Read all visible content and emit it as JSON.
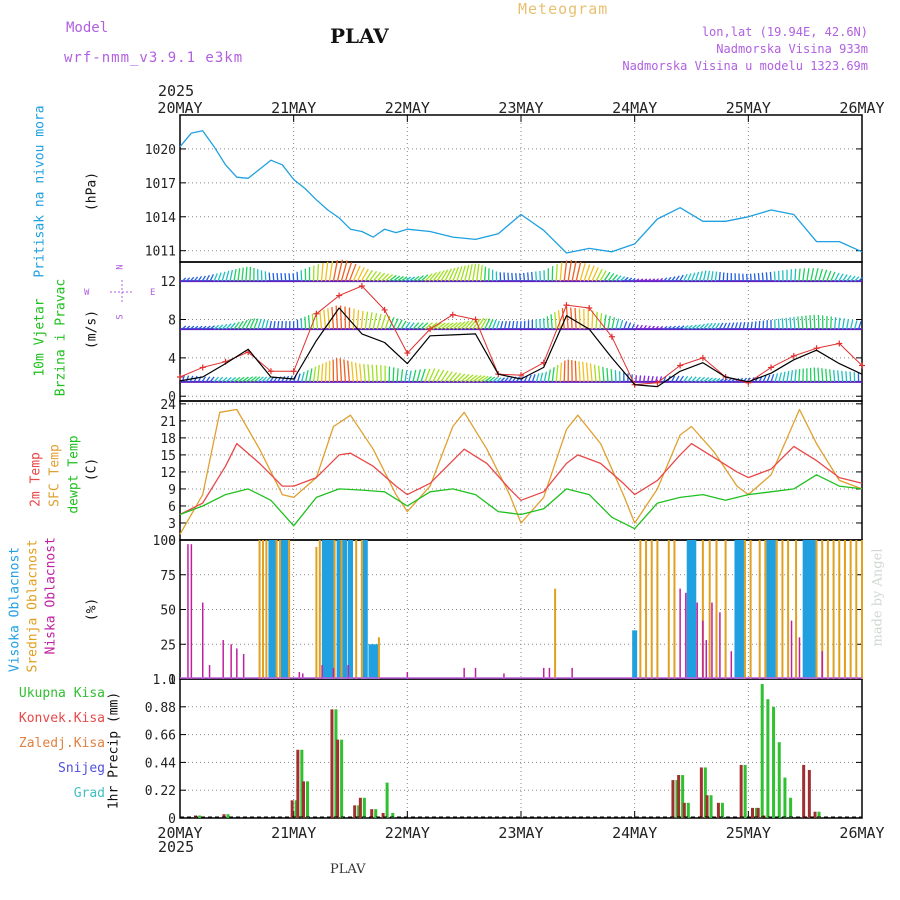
{
  "header": {
    "model_label": "Model",
    "model_name": "wrf-nmm_v3.9.1 e3km",
    "station": "PLAV",
    "meteogram": "Meteogram",
    "lonlat": "lon,lat (19.94E, 42.6N)",
    "altitude": "Nadmorska Visina 933m",
    "model_altitude": "Nadmorska Visina u modelu 1323.69m",
    "footer_station": "PLAV",
    "credit": "made by Angel"
  },
  "colors": {
    "pressure": "#1fa0e0",
    "temp2m": "#e84848",
    "sfc": "#e0a030",
    "dew": "#20c020",
    "high_cloud": "#20a0e0",
    "mid_cloud": "#e0a020",
    "low_cloud": "#c020a0",
    "precip_total": "#30c030",
    "precip_conv": "#a03030",
    "precip_frozen": "#e08040",
    "snow": "#5050e0",
    "hail": "#40c0c0",
    "gust": "#e03030"
  },
  "time_axis": {
    "year_top": "2025",
    "year_bottom": "2025",
    "ticks": [
      "20MAY",
      "21MAY",
      "22MAY",
      "23MAY",
      "24MAY",
      "25MAY",
      "26MAY"
    ]
  },
  "panel_labels": {
    "pressure": [
      "Pritisak na nivou mora",
      "(hPa)"
    ],
    "wind": [
      "10m Vjetar",
      "Brzina i Pravac",
      "(m/s)"
    ],
    "compass": {
      "n": "N",
      "s": "S",
      "w": "W",
      "e": "E"
    },
    "temp": [
      "2m Temp",
      "SFC Temp",
      "dewpt Temp",
      "(C)"
    ],
    "cloud": [
      "Visoka Oblacnost",
      "Srednja Oblacnost",
      "Niska Oblacnost",
      "(%)"
    ],
    "precip_legend": [
      "Ukupna Kisa",
      "Konvek.Kisa",
      "Zaledj.Kisa",
      "Snijeg",
      "Grad"
    ],
    "precip_unit": "1hr Precip (mm)"
  },
  "chart_data": [
    {
      "type": "line",
      "title": "Pritisak na nivou mora",
      "ylabel": "(hPa)",
      "ylim": [
        1010,
        1023
      ],
      "yticks": [
        "1011",
        "1014",
        "1017",
        "1020"
      ],
      "x_unit": "days from 20MAY 00",
      "series": [
        {
          "name": "pressure",
          "x": [
            0,
            0.1,
            0.2,
            0.3,
            0.4,
            0.5,
            0.6,
            0.7,
            0.8,
            0.9,
            1,
            1.1,
            1.2,
            1.3,
            1.4,
            1.5,
            1.6,
            1.7,
            1.8,
            1.9,
            2,
            2.2,
            2.4,
            2.6,
            2.8,
            3,
            3.2,
            3.4,
            3.6,
            3.8,
            4,
            4.2,
            4.4,
            4.6,
            4.8,
            5,
            5.2,
            5.4,
            5.6,
            5.8,
            6
          ],
          "values": [
            1020.2,
            1021.4,
            1021.6,
            1020.2,
            1018.6,
            1017.5,
            1017.4,
            1018.2,
            1019.0,
            1018.6,
            1017.3,
            1016.5,
            1015.5,
            1014.6,
            1013.9,
            1012.9,
            1012.7,
            1012.2,
            1012.9,
            1012.6,
            1012.9,
            1012.7,
            1012.2,
            1012.0,
            1012.5,
            1014.2,
            1012.8,
            1010.8,
            1011.2,
            1010.9,
            1011.6,
            1013.8,
            1014.8,
            1013.6,
            1013.6,
            1014.0,
            1014.6,
            1014.2,
            1011.8,
            1011.8,
            1010.9
          ]
        }
      ]
    },
    {
      "type": "line",
      "title": "10m Vjetar Brzina i Pravac",
      "ylabel": "(m/s)",
      "ylim": [
        -0.5,
        14
      ],
      "yticks": [
        "0",
        "4",
        "8",
        "12"
      ],
      "series": [
        {
          "name": "wind speed",
          "x": [
            0,
            0.2,
            0.4,
            0.6,
            0.8,
            1,
            1.2,
            1.4,
            1.6,
            1.8,
            2,
            2.2,
            2.4,
            2.6,
            2.8,
            3,
            3.2,
            3.4,
            3.6,
            3.8,
            4,
            4.2,
            4.4,
            4.6,
            4.8,
            5,
            5.2,
            5.4,
            5.6,
            5.8,
            6
          ],
          "values": [
            1.6,
            2.0,
            3.4,
            4.9,
            2.0,
            1.8,
            5.8,
            9.2,
            6.5,
            5.6,
            3.4,
            6.3,
            6.4,
            6.5,
            2.3,
            1.8,
            3.0,
            8.4,
            7.0,
            4.0,
            1.2,
            1.0,
            2.6,
            3.5,
            2.0,
            1.5,
            2.4,
            3.8,
            4.8,
            3.4,
            2.3
          ]
        },
        {
          "name": "gust",
          "x": [
            0,
            0.2,
            0.4,
            0.6,
            0.8,
            1,
            1.2,
            1.4,
            1.6,
            1.8,
            2,
            2.2,
            2.4,
            2.6,
            2.8,
            3,
            3.2,
            3.4,
            3.6,
            3.8,
            4,
            4.2,
            4.4,
            4.6,
            4.8,
            5,
            5.2,
            5.4,
            5.6,
            5.8,
            6
          ],
          "values": [
            2.0,
            3.0,
            3.6,
            4.6,
            2.6,
            2.6,
            8.6,
            10.5,
            11.5,
            9.0,
            4.5,
            7.0,
            8.5,
            8.0,
            2.3,
            2.2,
            3.5,
            9.5,
            9.2,
            6.2,
            1.2,
            1.4,
            3.2,
            4.0,
            2.0,
            1.4,
            3.0,
            4.2,
            5.0,
            5.5,
            3.2
          ]
        }
      ]
    },
    {
      "type": "line",
      "title": "2m Temp / SFC Temp / dewpt Temp",
      "ylabel": "(C)",
      "ylim": [
        0,
        24.5
      ],
      "yticks": [
        "0",
        "3",
        "6",
        "9",
        "12",
        "15",
        "18",
        "21",
        "24"
      ],
      "series": [
        {
          "name": "2m Temp",
          "x": [
            0,
            0.2,
            0.4,
            0.5,
            0.7,
            0.9,
            1,
            1.2,
            1.4,
            1.5,
            1.7,
            1.9,
            2,
            2.2,
            2.4,
            2.5,
            2.7,
            2.9,
            3,
            3.2,
            3.4,
            3.5,
            3.7,
            3.9,
            4,
            4.2,
            4.4,
            4.5,
            4.7,
            4.9,
            5,
            5.2,
            5.4,
            5.6,
            5.8,
            6
          ],
          "values": [
            4.5,
            6.5,
            13.0,
            17.0,
            13.5,
            9.5,
            9.5,
            11.0,
            15.0,
            15.3,
            13.0,
            9.5,
            8.0,
            10.0,
            14.0,
            16.0,
            13.5,
            9.0,
            7.0,
            8.5,
            13.5,
            15.0,
            13.5,
            10.0,
            8.0,
            10.5,
            15.0,
            17.0,
            14.5,
            12.0,
            11.0,
            12.5,
            16.5,
            14.0,
            11.0,
            10.0
          ]
        },
        {
          "name": "SFC Temp",
          "x": [
            0,
            0.2,
            0.35,
            0.5,
            0.7,
            0.9,
            1,
            1.2,
            1.35,
            1.5,
            1.7,
            1.9,
            2,
            2.2,
            2.4,
            2.5,
            2.7,
            2.9,
            3,
            3.2,
            3.4,
            3.5,
            3.7,
            3.9,
            4,
            4.2,
            4.4,
            4.5,
            4.7,
            4.9,
            5,
            5.2,
            5.45,
            5.6,
            5.8,
            6
          ],
          "values": [
            1.0,
            8.0,
            22.5,
            23.0,
            16.0,
            8.0,
            7.5,
            11.0,
            20.0,
            22.0,
            16.0,
            8.0,
            5.0,
            9.5,
            20.0,
            22.5,
            16.0,
            8.0,
            3.0,
            7.5,
            19.5,
            22.0,
            17.0,
            8.0,
            3.0,
            9.0,
            18.5,
            20.0,
            15.5,
            9.5,
            8.0,
            11.5,
            23.0,
            17.0,
            10.5,
            9.0
          ]
        },
        {
          "name": "dewpt Temp",
          "x": [
            0,
            0.2,
            0.4,
            0.6,
            0.8,
            1,
            1.2,
            1.4,
            1.6,
            1.8,
            2,
            2.2,
            2.4,
            2.6,
            2.8,
            3,
            3.2,
            3.4,
            3.6,
            3.8,
            4,
            4.2,
            4.4,
            4.6,
            4.8,
            5,
            5.2,
            5.4,
            5.6,
            5.8,
            6
          ],
          "values": [
            4.5,
            6.0,
            8.0,
            9.0,
            7.0,
            2.5,
            7.5,
            9.0,
            8.8,
            8.5,
            6.0,
            8.5,
            9.0,
            8.0,
            5.0,
            4.5,
            5.5,
            9.0,
            8.0,
            4.0,
            2.0,
            6.5,
            7.5,
            8.0,
            7.0,
            8.0,
            8.5,
            9.0,
            11.5,
            9.5,
            9.0
          ]
        }
      ]
    },
    {
      "type": "bar",
      "title": "Oblacnost",
      "ylabel": "(%)",
      "ylim": [
        0,
        100
      ],
      "yticks": [
        "0",
        "25",
        "50",
        "75",
        "100"
      ],
      "series": [
        {
          "name": "Visoka Oblacnost",
          "x": [
            0.8,
            0.83,
            0.9,
            0.93,
            1.27,
            1.3,
            1.33,
            1.4,
            1.45,
            1.5,
            1.63,
            1.68,
            1.72,
            4.0,
            4.48,
            4.52,
            4.9,
            4.92,
            4.95,
            5.18,
            5.2,
            5.22,
            5.5,
            5.52,
            5.55,
            5.58
          ],
          "values": [
            100,
            100,
            100,
            100,
            100,
            100,
            100,
            100,
            100,
            100,
            100,
            25,
            25,
            35,
            100,
            100,
            100,
            100,
            100,
            100,
            100,
            100,
            100,
            100,
            100,
            100
          ]
        },
        {
          "name": "Srednja Oblacnost",
          "x": [
            0.7,
            0.73,
            0.76,
            0.85,
            0.88,
            0.96,
            1.2,
            1.23,
            1.36,
            1.42,
            1.55,
            1.6,
            1.75,
            3.3,
            4.05,
            4.1,
            4.15,
            4.2,
            4.3,
            4.35,
            4.6,
            4.66,
            4.72,
            4.8,
            4.97,
            5.02,
            5.1,
            5.15,
            5.25,
            5.3,
            5.35,
            5.42,
            5.6,
            5.65,
            5.7,
            5.75,
            5.8,
            5.85,
            5.9,
            5.95,
            6.0
          ],
          "values": [
            100,
            100,
            100,
            100,
            100,
            100,
            95,
            100,
            100,
            100,
            100,
            100,
            30,
            65,
            100,
            100,
            100,
            100,
            100,
            100,
            100,
            100,
            100,
            100,
            100,
            100,
            100,
            100,
            100,
            100,
            100,
            100,
            100,
            100,
            100,
            100,
            100,
            100,
            100,
            100,
            100
          ]
        },
        {
          "name": "Niska Oblacnost",
          "x": [
            0.07,
            0.1,
            0.2,
            0.26,
            0.38,
            0.45,
            0.5,
            0.56,
            1.05,
            1.08,
            1.25,
            1.35,
            1.48,
            2.0,
            2.5,
            2.6,
            2.85,
            3.2,
            3.25,
            3.45,
            4.4,
            4.45,
            4.55,
            4.6,
            4.63,
            4.68,
            4.75,
            4.85,
            5.38,
            5.45,
            5.65
          ],
          "values": [
            97,
            97,
            55,
            10,
            28,
            25,
            22,
            18,
            5,
            4,
            10,
            8,
            10,
            5,
            8,
            8,
            4,
            8,
            8,
            8,
            65,
            62,
            55,
            42,
            28,
            55,
            48,
            20,
            42,
            30,
            20
          ]
        }
      ]
    },
    {
      "type": "bar",
      "title": "1hr Precip",
      "ylabel": "1hr Precip (mm)",
      "ylim": [
        0,
        1.1
      ],
      "yticks": [
        "0",
        "0.22",
        "0.44",
        "0.66",
        "0.88",
        "1.1"
      ],
      "series": [
        {
          "name": "Ukupna Kisa",
          "x": [
            0.15,
            0.4,
            1.0,
            1.05,
            1.1,
            1.35,
            1.4,
            1.55,
            1.6,
            1.7,
            1.8,
            1.85,
            4.35,
            4.4,
            4.45,
            4.6,
            4.65,
            4.75,
            4.95,
            5.05,
            5.1,
            5.15,
            5.2,
            5.25,
            5.3,
            5.35,
            5.6
          ],
          "values": [
            0.02,
            0.03,
            0.14,
            0.54,
            0.29,
            0.86,
            0.62,
            0.1,
            0.16,
            0.07,
            0.28,
            0.04,
            0.3,
            0.34,
            0.12,
            0.4,
            0.18,
            0.12,
            0.42,
            0.08,
            1.06,
            0.94,
            0.88,
            0.6,
            0.32,
            0.16,
            0.05
          ]
        },
        {
          "name": "Konvek.Kisa",
          "x": [
            0.15,
            0.4,
            1.0,
            1.05,
            1.1,
            1.35,
            1.4,
            1.55,
            1.6,
            1.7,
            1.8,
            4.35,
            4.4,
            4.45,
            4.6,
            4.65,
            4.75,
            4.95,
            5.05,
            5.1,
            5.15,
            5.5,
            5.55,
            5.6
          ],
          "values": [
            0.02,
            0.03,
            0.14,
            0.54,
            0.29,
            0.86,
            0.62,
            0.1,
            0.16,
            0.07,
            0.04,
            0.3,
            0.34,
            0.12,
            0.4,
            0.18,
            0.12,
            0.42,
            0.08,
            0.08,
            0.02,
            0.42,
            0.38,
            0.05
          ]
        }
      ]
    }
  ]
}
